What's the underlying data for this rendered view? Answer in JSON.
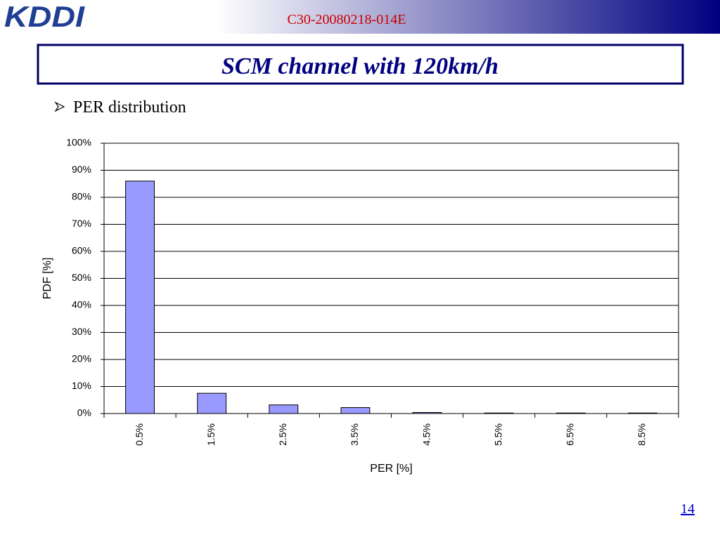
{
  "logo": "KDDI",
  "doc_id": "C30-20080218-014E",
  "slide_title": "SCM channel with 120km/h",
  "bullet": "PER distribution",
  "page_number": "14",
  "chart_data": {
    "type": "bar",
    "categories": [
      "0.5%",
      "1.5%",
      "2.5%",
      "3.5%",
      "4.5%",
      "5.5%",
      "6.5%",
      "8.5%"
    ],
    "values": [
      86,
      7.5,
      3.2,
      2.2,
      0.4,
      0.2,
      0.2,
      0.2
    ],
    "color": "#9999ff",
    "xlabel": "PER [%]",
    "ylabel": "PDF [%]",
    "ylim": [
      0,
      100
    ],
    "yticks": [
      {
        "value": 0,
        "label": "0%"
      },
      {
        "value": 10,
        "label": "10%"
      },
      {
        "value": 20,
        "label": "20%"
      },
      {
        "value": 30,
        "label": "30%"
      },
      {
        "value": 40,
        "label": "40%"
      },
      {
        "value": 50,
        "label": "50%"
      },
      {
        "value": 60,
        "label": "60%"
      },
      {
        "value": 70,
        "label": "70%"
      },
      {
        "value": 80,
        "label": "80%"
      },
      {
        "value": 90,
        "label": "90%"
      },
      {
        "value": 100,
        "label": "100%"
      }
    ],
    "grid": true
  }
}
